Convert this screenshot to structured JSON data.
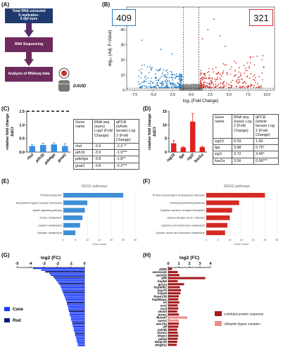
{
  "panels": {
    "A": "(A)",
    "B": "(B)",
    "C": "(C)",
    "D": "(D)",
    "E": "(E)",
    "F": "(F)",
    "G": "(G)",
    "H": "(H)"
  },
  "colors": {
    "navy": "#1f3a6d",
    "purple": "#7b2a66",
    "blue": "#2f8fd8",
    "red": "#d62020",
    "darkred": "#a51a1a",
    "pink": "#f08a8a",
    "volcano_blue": "#2d7fc4",
    "volcano_red": "#d9302a",
    "grey": "#8a8a8a"
  },
  "panelA": {
    "box1_line1": "Total RNA extracted",
    "box1_line2": "5 replicates-",
    "box1_line3": "5 dpf eyes",
    "box2": "RNA Sequencing",
    "box3": "Analysis of RNAseq data",
    "logo_label": "DAVID",
    "logo_text": "Bioinformatics"
  },
  "panelB": {
    "count_down": "409",
    "count_up": "321",
    "ylabel": "-log₁₀ (Adj. P-Value)",
    "xlabel": "log₂ (Fold Change)",
    "xticks": [
      "-7.5",
      "-5.0",
      "-2.5",
      "0.0",
      "2.5",
      "5.0",
      "7.5",
      "10.0"
    ],
    "yticks": [
      "0",
      "10",
      "20",
      "30",
      "40",
      "50"
    ]
  },
  "panelC": {
    "chart_data": {
      "type": "bar",
      "categories": [
        "rhol",
        "pth1b",
        "pde6ga",
        "gnat1"
      ],
      "values": [
        0.22,
        0.26,
        0.28,
        0.22
      ],
      "errors": [
        0.05,
        0.07,
        0.06,
        0.09
      ],
      "ylabel": "relative fold change\nΔΔCt",
      "ylim": [
        0,
        1.5
      ],
      "yticks": [
        "0.0",
        "0.5",
        "1.0",
        "1.5"
      ]
    },
    "table": {
      "head": [
        "Gene name",
        "RNA seq (eyes)\nLog2 (Fold Change)",
        "qPCR (whole larvae)\nLog 2 (Fold Change)"
      ],
      "rows": [
        [
          "rhol",
          "-3.9",
          "-2.3 **"
        ],
        [
          "pth1b",
          "-3.9",
          "-1.9***"
        ],
        [
          "pde6ga",
          "-3.8",
          "-1.8**"
        ],
        [
          "gnat1",
          "-3.8",
          "-2.2***"
        ]
      ]
    }
  },
  "panelD": {
    "chart_data": {
      "type": "bar",
      "categories": [
        "isg15",
        "fga",
        "irg1l",
        "fosl1a"
      ],
      "values": [
        3.2,
        1.7,
        11.2,
        1.8
      ],
      "errors": [
        1.0,
        0.3,
        3.0,
        0.3
      ],
      "ylabel": "relative fold change\nΔΔCt",
      "ylim": [
        0,
        15
      ],
      "yticks": [
        "0",
        "5",
        "10",
        "15"
      ]
    },
    "table": {
      "head": [
        "Gene name",
        "RNA seq (eyes)\nLog 2 (Fold Change)",
        "qPCR (whole larvae)\nLog 2 (Fold Change)"
      ],
      "rows": [
        [
          "isg15",
          "6.59",
          "1.69"
        ],
        [
          "fga",
          "3.88",
          "0.75*"
        ],
        [
          "irg1l",
          "3.72",
          "3.49*"
        ],
        [
          "fosl1a",
          "3.56",
          "0.99***"
        ]
      ]
    }
  },
  "panelE": {
    "chart_data": {
      "type": "bar",
      "title": "KEGG pathways",
      "categories": [
        "Phototransduction",
        "Neuroactive ligand-receptor interaction",
        "Apelin signaling pathway",
        "Purine metabolism",
        "Calcium metabolism",
        "Nitrogen metabolism"
      ],
      "values": [
        25,
        10,
        9,
        8,
        7,
        5
      ],
      "xlabel": "Gene Count",
      "xticks": [
        "0",
        "5",
        "10",
        "15",
        "20",
        "25",
        "30"
      ],
      "xlim": [
        0,
        30
      ]
    }
  },
  "panelF": {
    "chart_data": {
      "type": "bar",
      "title": "KEGG pathways",
      "categories": [
        "Protein processing in endoplasmic reticulum",
        "Aminoacyl-tRNA biosynthesis",
        "Cytokine-cytokine receptor interaction",
        "Herpes simplex virus 1 infection",
        "Cysteine and methionine metabolism",
        "Glycine, serine and threonine metabolism"
      ],
      "values": [
        25,
        14,
        11,
        10,
        9,
        8
      ],
      "xlabel": "Gene Count",
      "xticks": [
        "0",
        "5",
        "10",
        "15",
        "20",
        "25",
        "30"
      ],
      "xlim": [
        0,
        30
      ]
    }
  },
  "panelG": {
    "chart_data": {
      "type": "bar",
      "title": "log2 (FC)",
      "xticks": [
        "-5",
        "-4",
        "-3",
        "-2",
        "-1",
        "0"
      ],
      "xlim": [
        -5,
        0
      ],
      "legend": [
        {
          "name": "Cone",
          "color": "#1a3cff"
        },
        {
          "name": "Rod",
          "color": "#0c1a7a"
        }
      ],
      "values": [
        -3.8,
        -3.2,
        -2.9,
        -2.6,
        -2.5,
        -2.3,
        -2.2,
        -2.1,
        -2.0,
        -1.9,
        -1.8,
        -1.75,
        -1.7,
        -1.65,
        -1.6,
        -1.55,
        -1.5,
        -1.45,
        -1.4,
        -1.35,
        -1.3,
        -1.3,
        -1.25,
        -1.2,
        -1.2,
        -1.15,
        -1.1,
        -1.1,
        -1.05,
        -1.0,
        -1.0,
        -0.95,
        -0.9,
        -0.9,
        -0.85,
        -0.8,
        -0.8,
        -0.75,
        -0.7,
        -0.7,
        -0.65,
        -0.6,
        -0.6,
        -0.55,
        -0.5,
        -0.5
      ],
      "types": [
        "cone",
        "cone",
        "rod",
        "cone",
        "cone",
        "rod",
        "cone",
        "cone",
        "cone",
        "rod",
        "cone",
        "cone",
        "cone",
        "cone",
        "rod",
        "cone",
        "cone",
        "cone",
        "cone",
        "cone",
        "rod",
        "cone",
        "cone",
        "cone",
        "cone",
        "rod",
        "cone",
        "cone",
        "cone",
        "cone",
        "cone",
        "cone",
        "rod",
        "cone",
        "cone",
        "cone",
        "cone",
        "cone",
        "rod",
        "cone",
        "cone",
        "cone",
        "cone",
        "cone",
        "cone",
        "cone"
      ]
    }
  },
  "panelH": {
    "chart_data": {
      "type": "bar",
      "title": "log2 (FC)",
      "xticks": [
        "0",
        "1",
        "2",
        "3",
        "4"
      ],
      "xlim": [
        0,
        4
      ],
      "categories": [
        "ddit3",
        "sec61a1b",
        "sec61b",
        "atf6",
        "hsp90",
        "gro1a",
        "hsp90b1",
        "hsp70",
        "hspa5",
        "hspa13b",
        "hsp90aa1",
        "srl",
        "ssr2",
        "ssr3",
        "sec63",
        "tram1",
        "fbxo47",
        "syvn1",
        "sec23a",
        "atf",
        "calr3b",
        "hyou1",
        "lman1",
        "pdia4",
        "dnajc3b",
        "dnajb11"
      ],
      "values": [
        0.35,
        0.9,
        1.05,
        3.5,
        0.9,
        1.5,
        1.1,
        1.2,
        1.15,
        1.0,
        0.95,
        1.05,
        0.9,
        0.95,
        0.85,
        1.0,
        1.8,
        1.0,
        1.0,
        0.95,
        0.85,
        0.9,
        0.95,
        0.9,
        0.85,
        0.8
      ],
      "groups": [
        "upr",
        "upr",
        "upr",
        "upr",
        "upr",
        "upr",
        "upr",
        "upr",
        "upr",
        "upr",
        "upr",
        "upr",
        "upr",
        "upr",
        "upr",
        "upr",
        "ubi",
        "ubi",
        "upr",
        "upr",
        "upr",
        "upr",
        "upr",
        "upr",
        "upr",
        "upr"
      ],
      "legend": [
        {
          "name": "Unfolded protein response",
          "color": "#a51a1a"
        },
        {
          "name": "Ubiquitin ligase complex",
          "color": "#f08a8a"
        }
      ]
    }
  }
}
